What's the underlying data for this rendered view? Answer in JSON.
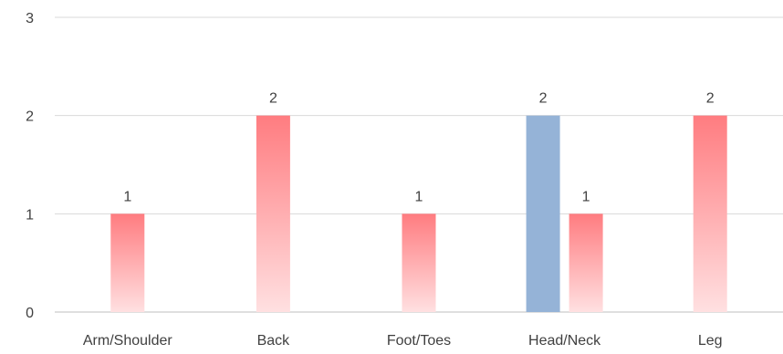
{
  "chart_data": {
    "type": "bar",
    "categories": [
      "Arm/Shoulder",
      "Back",
      "Foot/Toes",
      "Head/Neck",
      "Leg"
    ],
    "series": [
      {
        "values": [
          null,
          null,
          null,
          2,
          null
        ],
        "color": "#95B3D7"
      },
      {
        "values": [
          1,
          2,
          1,
          1,
          2
        ],
        "color": "#FF7C80"
      }
    ],
    "ylim": [
      0,
      3
    ],
    "yticks": [
      0,
      1,
      2,
      3
    ],
    "grid": true,
    "legend": "none",
    "data_labels": true
  }
}
